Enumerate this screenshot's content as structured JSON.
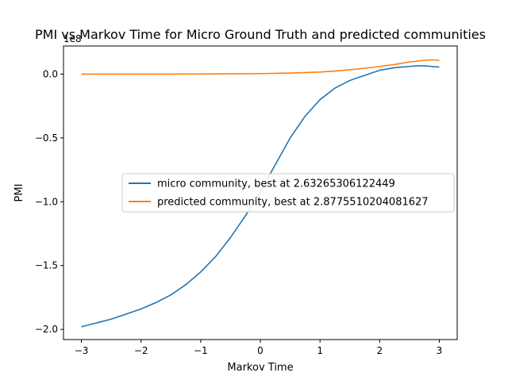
{
  "chart_data": {
    "type": "line",
    "title": "PMI vs Markov Time for Micro Ground Truth and predicted communities",
    "xlabel": "Markov Time",
    "ylabel": "PMI",
    "offset_text": "1e8",
    "xlim": [
      -3.3,
      3.3
    ],
    "ylim": [
      -2.08,
      0.22
    ],
    "xticks": [
      -3,
      -2,
      -1,
      0,
      1,
      2,
      3
    ],
    "xtick_labels": [
      "−3",
      "−2",
      "−1",
      "0",
      "1",
      "2",
      "3"
    ],
    "yticks": [
      0.0,
      -0.5,
      -1.0,
      -1.5,
      -2.0
    ],
    "ytick_labels": [
      "0.0",
      "−0.5",
      "−1.0",
      "−1.5",
      "−2.0"
    ],
    "grid": false,
    "legend_position": "center-right",
    "series": [
      {
        "name": "micro community, best at 2.63265306122449",
        "color": "#1f77b4",
        "x": [
          -3.0,
          -2.75,
          -2.5,
          -2.25,
          -2.0,
          -1.75,
          -1.5,
          -1.25,
          -1.0,
          -0.75,
          -0.5,
          -0.25,
          0.0,
          0.25,
          0.5,
          0.75,
          1.0,
          1.25,
          1.5,
          1.75,
          2.0,
          2.25,
          2.5,
          2.63,
          2.75,
          3.0
        ],
        "y": [
          -1.98,
          -1.95,
          -1.92,
          -1.88,
          -1.84,
          -1.79,
          -1.73,
          -1.65,
          -1.55,
          -1.43,
          -1.28,
          -1.11,
          -0.92,
          -0.71,
          -0.5,
          -0.33,
          -0.2,
          -0.11,
          -0.05,
          -0.01,
          0.03,
          0.05,
          0.06,
          0.065,
          0.065,
          0.055
        ]
      },
      {
        "name": "predicted community, best at 2.8775510204081627",
        "color": "#ff7f0e",
        "x": [
          -3.0,
          -2.5,
          -2.0,
          -1.5,
          -1.0,
          -0.5,
          0.0,
          0.5,
          1.0,
          1.25,
          1.5,
          1.75,
          2.0,
          2.25,
          2.5,
          2.75,
          2.88,
          3.0
        ],
        "y": [
          0.0,
          0.0,
          0.0,
          0.0,
          0.001,
          0.002,
          0.004,
          0.008,
          0.016,
          0.024,
          0.034,
          0.046,
          0.06,
          0.075,
          0.095,
          0.108,
          0.112,
          0.108
        ]
      }
    ]
  }
}
